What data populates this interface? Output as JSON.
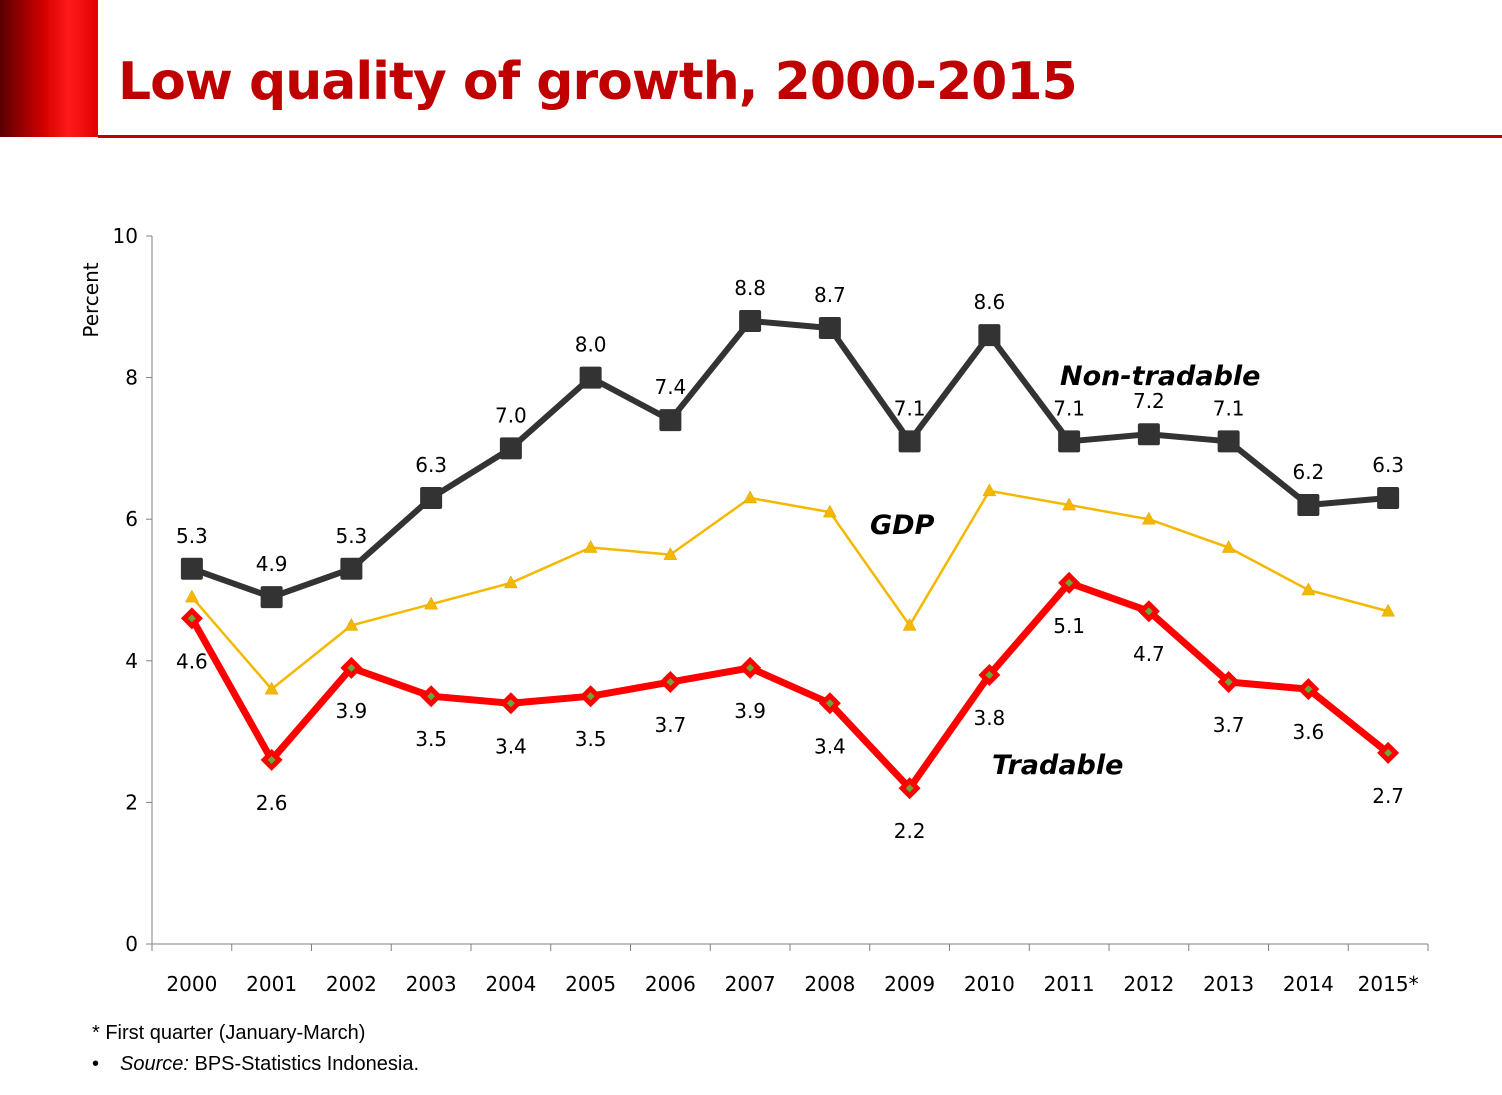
{
  "title": "Low quality of growth, 2000-2015",
  "footnote": "* First quarter (January-March)",
  "source": {
    "bullet": "•",
    "label": "Source:",
    "text": " BPS-Statistics Indonesia."
  },
  "colors": {
    "title": "#c00000",
    "non_tradable": "#333333",
    "gdp": "#f5b800",
    "tradable": "#ff0000",
    "tradable_marker_center": "#6aa83a"
  },
  "chart_data": {
    "type": "line",
    "ylabel": "Percent",
    "xlabel": "",
    "ylim": [
      0,
      10
    ],
    "yticks": [
      0,
      2,
      4,
      6,
      8,
      10
    ],
    "categories": [
      "2000",
      "2001",
      "2002",
      "2003",
      "2004",
      "2005",
      "2006",
      "2007",
      "2008",
      "2009",
      "2010",
      "2011",
      "2012",
      "2013",
      "2014",
      "2015*"
    ],
    "grid": false,
    "series": [
      {
        "name": "Non-tradable",
        "values": [
          5.3,
          4.9,
          5.3,
          6.3,
          7.0,
          8.0,
          7.4,
          8.8,
          8.7,
          7.1,
          8.6,
          7.1,
          7.2,
          7.1,
          6.2,
          6.3
        ],
        "labels": [
          "5.3",
          "4.9",
          "5.3",
          "6.3",
          "7.0",
          "8.0",
          "7.4",
          "8.8",
          "8.7",
          "7.1",
          "8.6",
          "7.1",
          "7.2",
          "7.1",
          "6.2",
          "6.3"
        ]
      },
      {
        "name": "GDP",
        "values": [
          4.9,
          3.6,
          4.5,
          4.8,
          5.1,
          5.6,
          5.5,
          6.3,
          6.1,
          4.5,
          6.4,
          6.2,
          6.0,
          5.6,
          5.0,
          4.7
        ]
      },
      {
        "name": "Tradable",
        "values": [
          4.6,
          2.6,
          3.9,
          3.5,
          3.4,
          3.5,
          3.7,
          3.9,
          3.4,
          2.2,
          3.8,
          5.1,
          4.7,
          3.7,
          3.6,
          2.7
        ],
        "labels": [
          "4.6",
          "2.6",
          "3.9",
          "3.5",
          "3.4",
          "3.5",
          "3.7",
          "3.9",
          "3.4",
          "2.2",
          "3.8",
          "5.1",
          "4.7",
          "3.7",
          "3.6",
          "2.7"
        ]
      }
    ]
  }
}
